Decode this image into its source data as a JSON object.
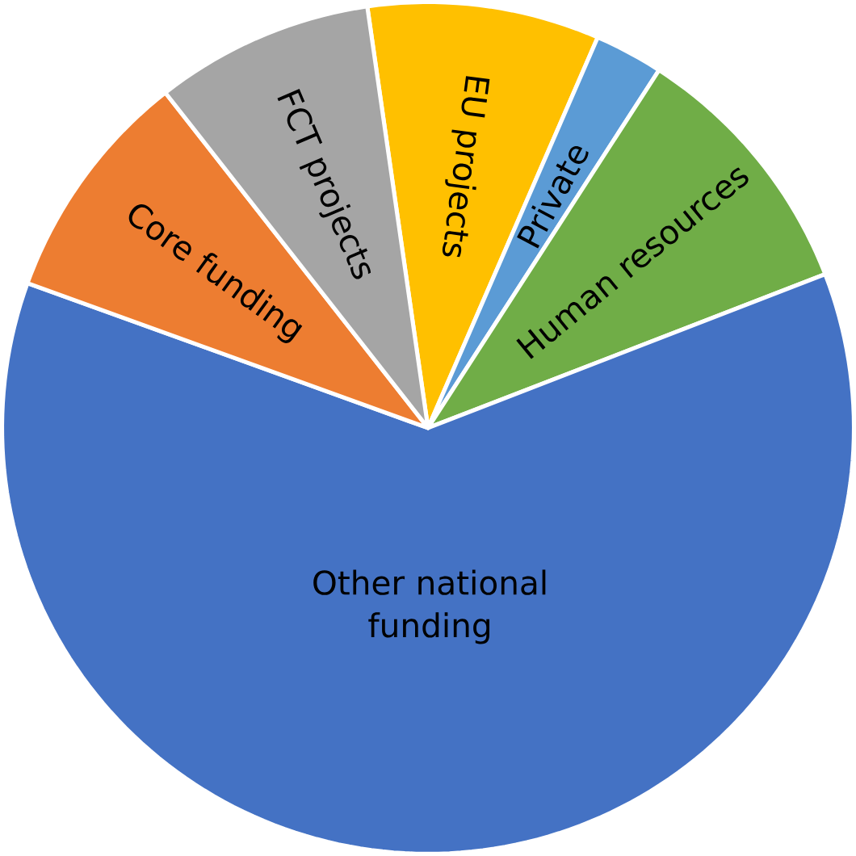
{
  "chart_data": {
    "type": "pie",
    "categories": [
      "EU projects",
      "Private",
      "Human resources",
      "Other national funding",
      "Core funding",
      "FCT projects"
    ],
    "values": [
      8.8,
      2.6,
      10.0,
      61.4,
      8.9,
      8.3
    ],
    "colors": [
      "#ffc000",
      "#5b9bd5",
      "#70ad47",
      "#4472c4",
      "#ed7d31",
      "#a5a5a5"
    ]
  }
}
